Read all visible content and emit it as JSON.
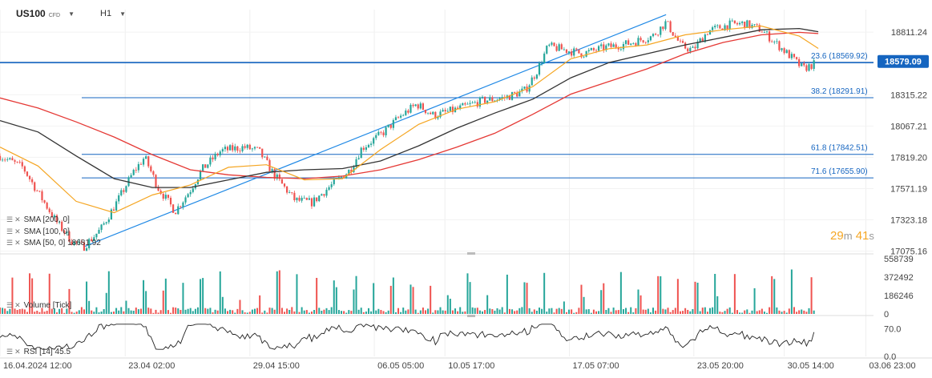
{
  "header": {
    "symbol": "US100",
    "symbol_type": "CFD",
    "timeframe": "H1",
    "symbol_caret_icon": "caret-down-icon",
    "timeframe_caret_icon": "caret-down-icon"
  },
  "countdown": {
    "minutes": "29",
    "minutes_unit": "m",
    "seconds": "41",
    "seconds_unit": "s"
  },
  "legends": {
    "sma200": "SMA [200, 0]",
    "sma100": "SMA [100, 0]",
    "sma50": "SMA [50, 0]",
    "sma50_value": "18681.92",
    "volume": "Volume [Tick]",
    "rsi": "RSI [14]",
    "rsi_value": "45.5",
    "legend_icon": "bars-icon",
    "remove_icon": "close-icon"
  },
  "colors": {
    "candle_up": "#26a69a",
    "candle_down": "#ef5350",
    "sma200": "#e53935",
    "sma100": "#333333",
    "sma50": "#f5a623",
    "fib_line": "#1565c0",
    "trend_line": "#1e88e5",
    "price_label_bg": "#1565c0",
    "countdown": "#f5a623"
  },
  "chart_data": {
    "type": "candlestick",
    "price_axis": {
      "ticks": [
        18811.24,
        18579.09,
        18315.22,
        18067.21,
        17819.2,
        17571.19,
        17323.18,
        17075.16
      ],
      "labels": [
        "18811.24",
        "18315.22",
        "18067.21",
        "17819.20",
        "17571.19",
        "17323.18",
        "17075.16"
      ],
      "ylim": [
        17060,
        18990
      ]
    },
    "current_price": {
      "value": 18579.09,
      "label": "18579.09"
    },
    "fibonacci_levels": [
      {
        "level": 23.6,
        "price": 18569.92,
        "label": "23.6 (18569.92)"
      },
      {
        "level": 38.2,
        "price": 18291.91,
        "label": "38.2 (18291.91)"
      },
      {
        "level": 61.8,
        "price": 17842.51,
        "label": "61.8 (17842.51)"
      },
      {
        "level": 71.6,
        "price": 17655.9,
        "label": "71.6 (17655.90)"
      }
    ],
    "x_axis": {
      "labels": [
        "16.04.2024 12:00",
        "23.04 02:00",
        "29.04 15:00",
        "06.05 05:00",
        "10.05 17:00",
        "17.05 07:00",
        "23.05 20:00",
        "30.05 14:00",
        "03.06 23:00"
      ],
      "positions": [
        0.0,
        6.58,
        13.13,
        19.67,
        23.38,
        29.92,
        36.46,
        41.21,
        45.5
      ]
    },
    "price_series": [
      {
        "day": 0.0,
        "price": 17830
      },
      {
        "day": 1.2,
        "price": 17740
      },
      {
        "day": 2.0,
        "price": 17540
      },
      {
        "day": 3.0,
        "price": 17300
      },
      {
        "day": 3.8,
        "price": 17150
      },
      {
        "day": 4.4,
        "price": 17110
      },
      {
        "day": 5.3,
        "price": 17250
      },
      {
        "day": 6.2,
        "price": 17480
      },
      {
        "day": 7.0,
        "price": 17700
      },
      {
        "day": 7.6,
        "price": 17820
      },
      {
        "day": 8.3,
        "price": 17580
      },
      {
        "day": 9.2,
        "price": 17390
      },
      {
        "day": 10.0,
        "price": 17560
      },
      {
        "day": 10.6,
        "price": 17720
      },
      {
        "day": 11.6,
        "price": 17870
      },
      {
        "day": 12.8,
        "price": 17900
      },
      {
        "day": 13.6,
        "price": 17870
      },
      {
        "day": 14.4,
        "price": 17680
      },
      {
        "day": 15.5,
        "price": 17480
      },
      {
        "day": 16.4,
        "price": 17460
      },
      {
        "day": 17.2,
        "price": 17570
      },
      {
        "day": 18.4,
        "price": 17720
      },
      {
        "day": 19.0,
        "price": 17890
      },
      {
        "day": 20.1,
        "price": 18010
      },
      {
        "day": 21.0,
        "price": 18140
      },
      {
        "day": 21.9,
        "price": 18240
      },
      {
        "day": 22.8,
        "price": 18150
      },
      {
        "day": 24.0,
        "price": 18200
      },
      {
        "day": 25.4,
        "price": 18270
      },
      {
        "day": 26.5,
        "price": 18290
      },
      {
        "day": 27.6,
        "price": 18350
      },
      {
        "day": 28.2,
        "price": 18500
      },
      {
        "day": 28.8,
        "price": 18700
      },
      {
        "day": 29.4,
        "price": 18680
      },
      {
        "day": 30.6,
        "price": 18640
      },
      {
        "day": 31.8,
        "price": 18690
      },
      {
        "day": 33.0,
        "price": 18720
      },
      {
        "day": 34.3,
        "price": 18780
      },
      {
        "day": 35.0,
        "price": 18890
      },
      {
        "day": 35.8,
        "price": 18700
      },
      {
        "day": 36.4,
        "price": 18670
      },
      {
        "day": 37.2,
        "price": 18820
      },
      {
        "day": 38.3,
        "price": 18870
      },
      {
        "day": 39.1,
        "price": 18880
      },
      {
        "day": 40.0,
        "price": 18830
      },
      {
        "day": 40.8,
        "price": 18720
      },
      {
        "day": 41.6,
        "price": 18610
      },
      {
        "day": 42.2,
        "price": 18520
      },
      {
        "day": 42.8,
        "price": 18560
      }
    ],
    "sma50": [
      {
        "day": 0.0,
        "price": 17900
      },
      {
        "day": 2.0,
        "price": 17750
      },
      {
        "day": 4.0,
        "price": 17470
      },
      {
        "day": 6.0,
        "price": 17380
      },
      {
        "day": 8.0,
        "price": 17520
      },
      {
        "day": 10.0,
        "price": 17600
      },
      {
        "day": 12.0,
        "price": 17740
      },
      {
        "day": 14.0,
        "price": 17760
      },
      {
        "day": 16.0,
        "price": 17640
      },
      {
        "day": 18.0,
        "price": 17650
      },
      {
        "day": 20.0,
        "price": 17880
      },
      {
        "day": 22.0,
        "price": 18080
      },
      {
        "day": 24.0,
        "price": 18200
      },
      {
        "day": 26.0,
        "price": 18260
      },
      {
        "day": 28.0,
        "price": 18380
      },
      {
        "day": 30.0,
        "price": 18600
      },
      {
        "day": 32.0,
        "price": 18680
      },
      {
        "day": 34.0,
        "price": 18710
      },
      {
        "day": 36.0,
        "price": 18790
      },
      {
        "day": 38.0,
        "price": 18830
      },
      {
        "day": 40.0,
        "price": 18860
      },
      {
        "day": 42.0,
        "price": 18780
      },
      {
        "day": 43.0,
        "price": 18682
      }
    ],
    "sma100": [
      {
        "day": 0.0,
        "price": 18110
      },
      {
        "day": 2.0,
        "price": 18020
      },
      {
        "day": 4.0,
        "price": 17830
      },
      {
        "day": 6.0,
        "price": 17650
      },
      {
        "day": 8.0,
        "price": 17580
      },
      {
        "day": 10.0,
        "price": 17580
      },
      {
        "day": 12.0,
        "price": 17640
      },
      {
        "day": 14.0,
        "price": 17700
      },
      {
        "day": 16.0,
        "price": 17720
      },
      {
        "day": 18.0,
        "price": 17730
      },
      {
        "day": 20.0,
        "price": 17790
      },
      {
        "day": 22.0,
        "price": 17910
      },
      {
        "day": 24.0,
        "price": 18050
      },
      {
        "day": 26.0,
        "price": 18170
      },
      {
        "day": 28.0,
        "price": 18280
      },
      {
        "day": 30.0,
        "price": 18450
      },
      {
        "day": 32.0,
        "price": 18570
      },
      {
        "day": 34.0,
        "price": 18640
      },
      {
        "day": 36.0,
        "price": 18710
      },
      {
        "day": 38.0,
        "price": 18770
      },
      {
        "day": 40.0,
        "price": 18830
      },
      {
        "day": 42.0,
        "price": 18840
      },
      {
        "day": 43.0,
        "price": 18815
      }
    ],
    "sma200": [
      {
        "day": 0.0,
        "price": 18290
      },
      {
        "day": 2.0,
        "price": 18210
      },
      {
        "day": 4.0,
        "price": 18100
      },
      {
        "day": 6.0,
        "price": 17980
      },
      {
        "day": 8.0,
        "price": 17840
      },
      {
        "day": 10.0,
        "price": 17720
      },
      {
        "day": 12.0,
        "price": 17680
      },
      {
        "day": 14.0,
        "price": 17660
      },
      {
        "day": 16.0,
        "price": 17650
      },
      {
        "day": 18.0,
        "price": 17670
      },
      {
        "day": 20.0,
        "price": 17720
      },
      {
        "day": 22.0,
        "price": 17800
      },
      {
        "day": 24.0,
        "price": 17900
      },
      {
        "day": 26.0,
        "price": 18010
      },
      {
        "day": 28.0,
        "price": 18160
      },
      {
        "day": 30.0,
        "price": 18320
      },
      {
        "day": 32.0,
        "price": 18420
      },
      {
        "day": 34.0,
        "price": 18520
      },
      {
        "day": 36.0,
        "price": 18640
      },
      {
        "day": 38.0,
        "price": 18730
      },
      {
        "day": 40.0,
        "price": 18790
      },
      {
        "day": 42.0,
        "price": 18810
      },
      {
        "day": 43.0,
        "price": 18800
      }
    ],
    "trend_line": [
      {
        "day": 4.4,
        "price": 17110
      },
      {
        "day": 35.0,
        "price": 18950
      }
    ],
    "volume_axis": {
      "ticks": [
        558739,
        372492,
        186246,
        0
      ],
      "labels": [
        "558739",
        "372492",
        "186246",
        "0"
      ],
      "ylim": [
        0,
        600000
      ]
    },
    "rsi_axis": {
      "ticks": [
        70.0,
        0.0
      ],
      "labels": [
        "70.0",
        "0.0"
      ],
      "ylim": [
        0,
        100
      ]
    },
    "x_range": [
      0,
      45.9
    ],
    "grid": true
  }
}
